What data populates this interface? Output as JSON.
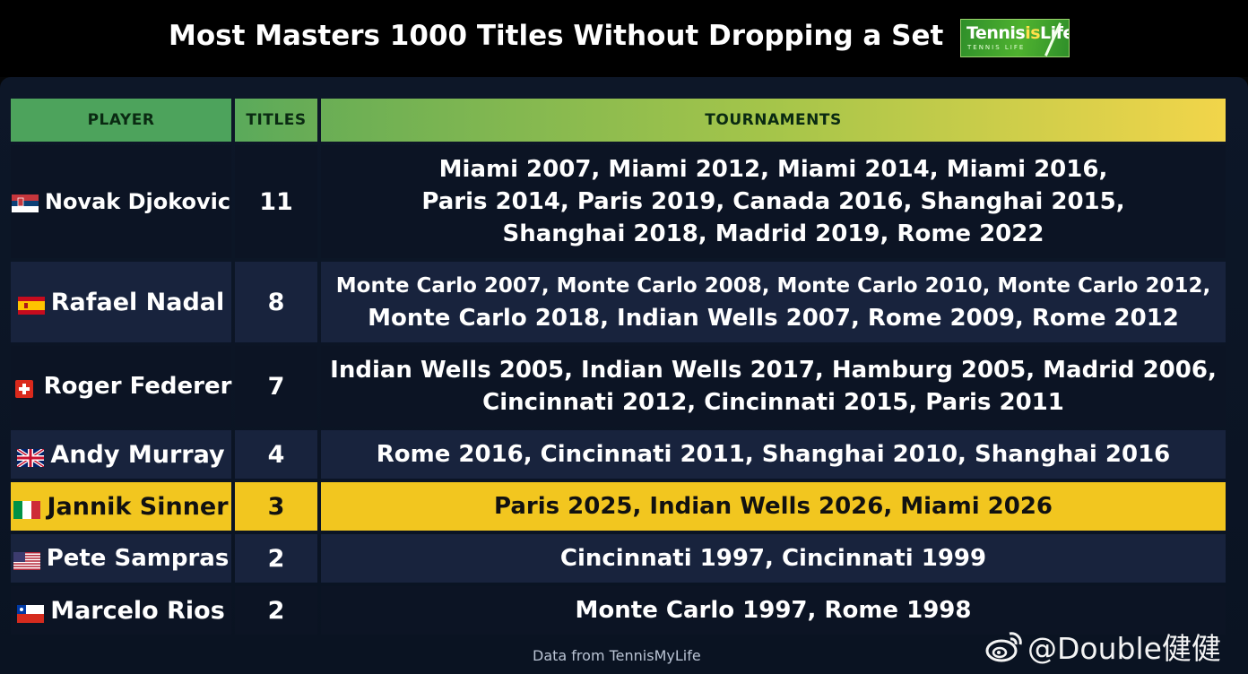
{
  "title": "Most Masters 1000 Titles Without Dropping a Set",
  "logo": {
    "main_a": "Tennis",
    "main_b": "Life",
    "highlight": "is",
    "sub": "TENNIS LIFE"
  },
  "columns": {
    "player": "PLAYER",
    "titles": "TITLES",
    "tournaments": "TOURNAMENTS"
  },
  "rows": [
    {
      "flag": "serbia-flag",
      "player": "Novak Djokovic",
      "titles": "11",
      "tournaments": [
        "Miami 2007, Miami 2012, Miami 2014, Miami 2016,",
        "Paris 2014, Paris 2019, Canada 2016, Shanghai 2015,",
        "Shanghai 2018, Madrid 2019, Rome 2022"
      ]
    },
    {
      "flag": "spain-flag",
      "player": "Rafael Nadal",
      "titles": "8",
      "tournaments": [
        "Monte Carlo 2007, Monte Carlo 2008, Monte Carlo 2010, Monte Carlo 2012,",
        "Monte Carlo 2018, Indian Wells 2007, Rome 2009, Rome 2012"
      ]
    },
    {
      "flag": "switzerland-flag",
      "player": "Roger Federer",
      "titles": "7",
      "tournaments": [
        "Indian Wells 2005, Indian Wells 2017, Hamburg 2005, Madrid 2006,",
        "Cincinnati 2012, Cincinnati 2015, Paris 2011"
      ]
    },
    {
      "flag": "uk-flag",
      "player": "Andy Murray",
      "titles": "4",
      "tournaments": [
        "Rome 2016, Cincinnati 2011, Shanghai 2010, Shanghai 2016"
      ]
    },
    {
      "flag": "italy-flag",
      "player": "Jannik Sinner",
      "titles": "3",
      "tournaments": [
        "Paris 2025, Indian Wells 2026, Miami 2026"
      ]
    },
    {
      "flag": "usa-flag",
      "player": "Pete Sampras",
      "titles": "2",
      "tournaments": [
        "Cincinnati 1997, Cincinnati 1999"
      ]
    },
    {
      "flag": "chile-flag",
      "player": "Marcelo Rios",
      "titles": "2",
      "tournaments": [
        "Monte Carlo 1997, Rome 1998"
      ]
    }
  ],
  "footer": "Data from TennisMyLife",
  "watermark": "@Double健健",
  "colors": {
    "header_green": "#4da35c",
    "header_yellow": "#f2d54a",
    "highlight": "#f2c61f",
    "row_dark": "#0c1424",
    "row_light": "#18233d"
  }
}
